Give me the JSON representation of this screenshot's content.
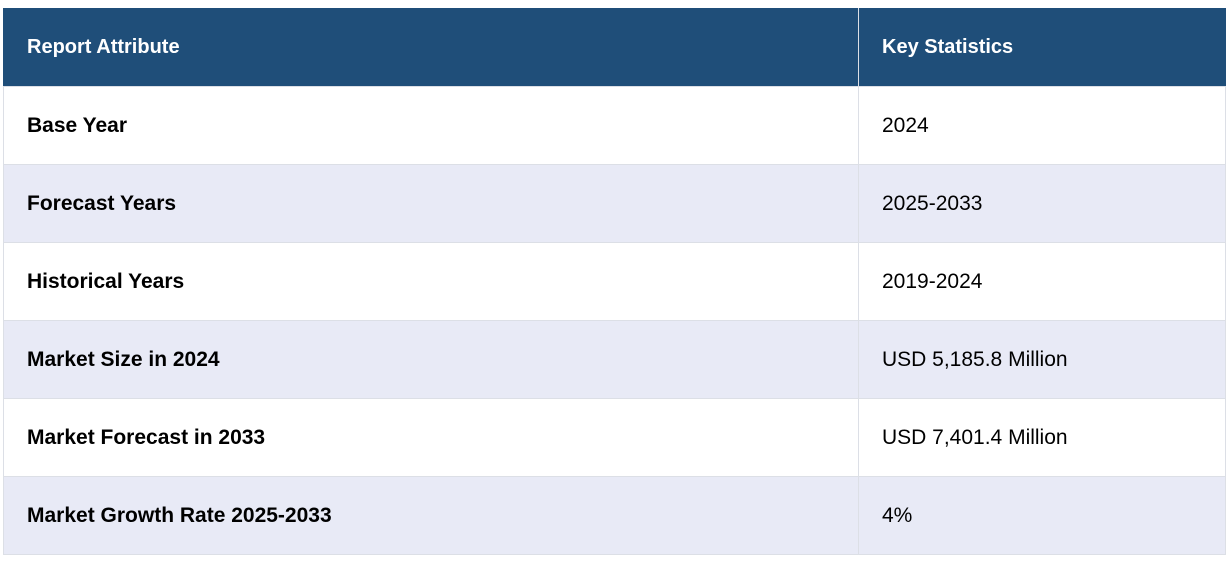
{
  "table": {
    "headers": [
      "Report Attribute",
      "Key Statistics"
    ],
    "rows": [
      {
        "attribute": "Base Year",
        "value": "2024"
      },
      {
        "attribute": "Forecast Years",
        "value": "2025-2033"
      },
      {
        "attribute": "Historical Years",
        "value": "2019-2024"
      },
      {
        "attribute": "Market Size in 2024",
        "value": "USD 5,185.8 Million"
      },
      {
        "attribute": "Market Forecast in 2033",
        "value": "USD 7,401.4 Million"
      },
      {
        "attribute": "Market Growth Rate 2025-2033",
        "value": "4%"
      }
    ]
  },
  "colors": {
    "header_bg": "#1f4e79",
    "header_text": "#ffffff",
    "row_alt_bg": "#e8eaf6",
    "border": "#dcdfe6"
  }
}
